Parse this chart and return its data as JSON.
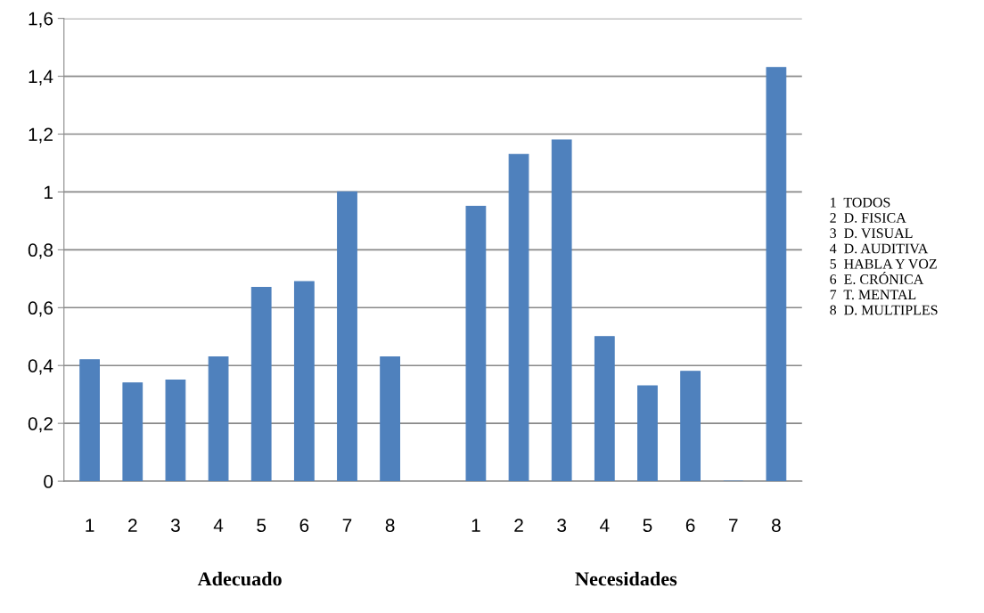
{
  "chart_data": {
    "type": "bar",
    "categories": [
      "1",
      "2",
      "3",
      "4",
      "5",
      "6",
      "7",
      "8",
      null,
      "1",
      "2",
      "3",
      "4",
      "5",
      "6",
      "7",
      "8"
    ],
    "values": [
      0.42,
      0.34,
      0.35,
      0.43,
      0.67,
      0.69,
      1.0,
      0.43,
      null,
      0.95,
      1.13,
      1.18,
      0.5,
      0.33,
      0.38,
      0,
      1.43
    ],
    "color": "#4f81bd",
    "ylim": [
      0,
      1.6
    ],
    "yticks": [
      0,
      {
        "value": 0.2,
        "label": "0,2"
      },
      {
        "value": 0.4,
        "label": "0,4"
      },
      {
        "value": 0.6,
        "label": "0,6"
      },
      {
        "value": 0.8,
        "label": "0,8"
      },
      1,
      {
        "value": 1.2,
        "label": "1,2"
      },
      {
        "value": 1.4,
        "label": "1,4"
      },
      {
        "value": 1.6,
        "label": "1,6"
      }
    ],
    "grid": "y",
    "annotations": [
      "Adecuado",
      "Necesidades",
      "1  TODOS\n2  D. FISICA\n3  D. VISUAL\n4  D. AUDITIVA\n5  HABLA Y VOZ\n6  E. CRÓNICA\n7  T. MENTAL\n8  D. MULTIPLES"
    ]
  }
}
